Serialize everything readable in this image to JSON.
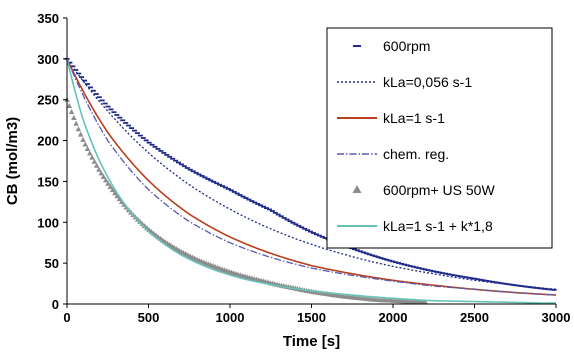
{
  "chart_data": {
    "type": "line",
    "title": "",
    "xlabel": "Time [s]",
    "ylabel": "CB (mol/m3)",
    "xlim": [
      0,
      3000
    ],
    "ylim": [
      0,
      350
    ],
    "xticks": [
      "0",
      "500",
      "1000",
      "1500",
      "2000",
      "2500",
      "3000"
    ],
    "yticks": [
      "0",
      "50",
      "100",
      "150",
      "200",
      "250",
      "300",
      "350"
    ],
    "grid": false,
    "legend_placement": "top-right",
    "series": [
      {
        "name": "600rpm",
        "style": "dash-markers",
        "color": "#1f2a8a",
        "x": [
          0,
          250,
          500,
          750,
          1000,
          1250,
          1500,
          1750,
          2000,
          2250,
          2500,
          2750,
          3000
        ],
        "y": [
          300,
          242,
          198,
          165,
          140,
          115,
          88,
          68,
          52,
          40,
          31,
          23,
          17
        ]
      },
      {
        "name": "kLa=0,056 s-1",
        "style": "dotted",
        "color": "#1f2a8a",
        "x": [
          0,
          250,
          500,
          750,
          1000,
          1250,
          1500,
          1750,
          2000,
          2250,
          2500,
          2750,
          3000
        ],
        "y": [
          300,
          236,
          185,
          146,
          116,
          92,
          73,
          58,
          46,
          37,
          29,
          23,
          18
        ]
      },
      {
        "name": "kLa=1 s-1",
        "style": "solid",
        "color": "#b5401b",
        "x": [
          0,
          250,
          500,
          750,
          1000,
          1250,
          1500,
          1750,
          2000,
          2250,
          2500,
          2750,
          3000
        ],
        "y": [
          300,
          210,
          151,
          110,
          82,
          62,
          47,
          37,
          29,
          23,
          18,
          14,
          11
        ]
      },
      {
        "name": "chem. reg.",
        "style": "dash-dot",
        "color": "#5a5ab0",
        "x": [
          0,
          250,
          500,
          750,
          1000,
          1250,
          1500,
          1750,
          2000,
          2250,
          2500,
          2750,
          3000
        ],
        "y": [
          300,
          200,
          140,
          101,
          75,
          57,
          44,
          35,
          28,
          22,
          18,
          14,
          11
        ]
      },
      {
        "name": "600rpm+ US 50W",
        "style": "triangle-markers",
        "color": "#8c8c8c",
        "x": [
          0,
          100,
          200,
          300,
          400,
          500,
          600,
          700,
          800,
          900,
          1000,
          1100,
          1200,
          1300,
          1400,
          1500,
          1600,
          1700,
          1800,
          1900,
          2000,
          2100,
          2200
        ],
        "y": [
          250,
          200,
          163,
          134,
          110,
          91,
          76,
          64,
          54,
          46,
          39,
          33,
          28,
          23,
          19,
          15,
          12,
          9,
          7,
          5,
          4,
          3,
          2
        ]
      },
      {
        "name": "kLa=1 s-1  +  k*1,8",
        "style": "solid",
        "color": "#66c2b8",
        "x": [
          0,
          100,
          200,
          300,
          400,
          500,
          700,
          900,
          1100,
          1300,
          1500,
          1750,
          2000,
          2250,
          2500,
          2750,
          3000
        ],
        "y": [
          300,
          225,
          175,
          138,
          110,
          89,
          60,
          42,
          30,
          22,
          16,
          11,
          7,
          4,
          3,
          2,
          1
        ]
      }
    ]
  }
}
